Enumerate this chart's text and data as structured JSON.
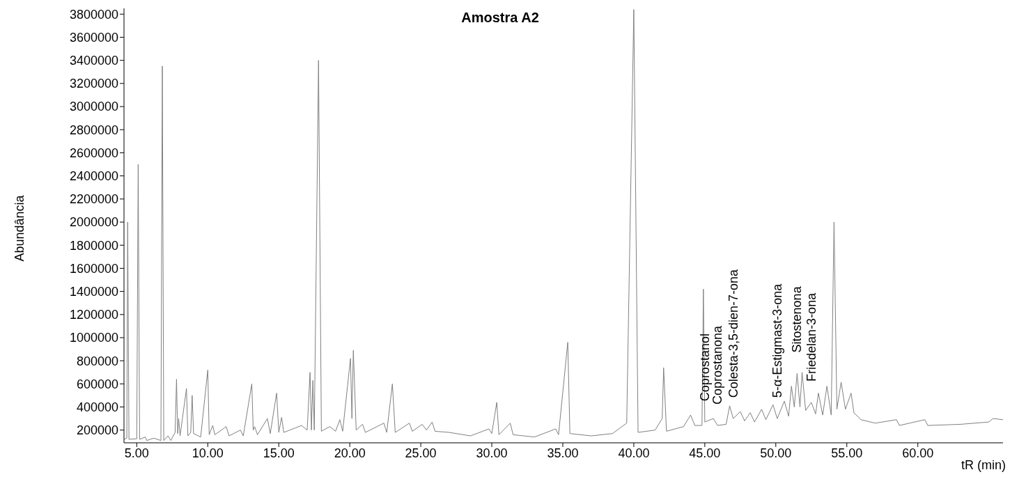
{
  "chart_data": {
    "type": "line",
    "title": "Amostra A2",
    "xlabel": "tR (min)",
    "ylabel": "Abundância",
    "xlim": [
      4.1,
      66
    ],
    "ylim": [
      90000,
      3850000
    ],
    "xticks": [
      {
        "value": 5,
        "label": "5.00"
      },
      {
        "value": 10,
        "label": "10.00"
      },
      {
        "value": 15,
        "label": "15.00"
      },
      {
        "value": 20,
        "label": "20.00"
      },
      {
        "value": 25,
        "label": "25.00"
      },
      {
        "value": 30,
        "label": "30.00"
      },
      {
        "value": 35,
        "label": "35.00"
      },
      {
        "value": 40,
        "label": "40.00"
      },
      {
        "value": 45,
        "label": "45.00"
      },
      {
        "value": 50,
        "label": "50.00"
      },
      {
        "value": 55,
        "label": "55.00"
      },
      {
        "value": 60,
        "label": "60.00"
      }
    ],
    "yticks": [
      200000,
      400000,
      600000,
      800000,
      1000000,
      1200000,
      1400000,
      1600000,
      1800000,
      2000000,
      2200000,
      2400000,
      2600000,
      2800000,
      3000000,
      3200000,
      3400000,
      3600000,
      3800000
    ],
    "grid": false,
    "legend": false,
    "x": [
      4.1,
      4.3,
      4.36,
      4.45,
      5.0,
      5.1,
      5.2,
      5.6,
      5.7,
      6.2,
      6.7,
      6.8,
      6.9,
      7.2,
      7.4,
      7.7,
      7.8,
      7.88,
      7.95,
      8.05,
      8.5,
      8.6,
      8.8,
      8.9,
      9.0,
      9.5,
      10.0,
      10.1,
      10.35,
      10.5,
      11.3,
      11.5,
      12.3,
      12.5,
      13.1,
      13.2,
      13.3,
      13.5,
      14.2,
      14.4,
      14.85,
      15.0,
      15.2,
      15.35,
      16.2,
      16.6,
      17.0,
      17.2,
      17.3,
      17.4,
      17.5,
      17.8,
      18.0,
      18.6,
      19.0,
      19.3,
      19.5,
      20.05,
      20.15,
      20.25,
      20.45,
      20.9,
      21.1,
      22.4,
      22.6,
      23.0,
      23.2,
      24.2,
      24.4,
      25.1,
      25.4,
      25.8,
      26.0,
      27.0,
      28.5,
      29.8,
      30.0,
      30.35,
      30.5,
      31.3,
      31.5,
      33.0,
      34.5,
      34.7,
      35.35,
      35.5,
      37.0,
      38.5,
      39.5,
      40.0,
      40.3,
      41.5,
      42.0,
      42.1,
      42.3,
      43.5,
      44.0,
      44.3,
      44.8,
      44.9,
      45.0,
      45.6,
      45.9,
      46.5,
      46.75,
      47.0,
      47.5,
      47.8,
      48.2,
      48.5,
      49.0,
      49.3,
      49.8,
      50.1,
      50.6,
      50.9,
      51.1,
      51.3,
      51.5,
      51.7,
      51.85,
      52.1,
      52.5,
      52.8,
      53.0,
      53.3,
      53.6,
      53.9,
      54.1,
      54.3,
      54.6,
      54.9,
      55.3,
      55.5,
      56.0,
      57.0,
      58.5,
      58.7,
      60.5,
      60.7,
      63.0,
      65.0,
      65.3,
      66.0
    ],
    "series": [
      {
        "color": "#808080",
        "values": [
          120000,
          130000,
          2000000,
          120000,
          125000,
          2500000,
          120000,
          140000,
          110000,
          130000,
          110000,
          3350000,
          110000,
          150000,
          110000,
          180000,
          640000,
          170000,
          300000,
          150000,
          560000,
          150000,
          180000,
          500000,
          170000,
          140000,
          720000,
          160000,
          240000,
          160000,
          230000,
          150000,
          200000,
          150000,
          600000,
          200000,
          230000,
          160000,
          300000,
          170000,
          520000,
          180000,
          310000,
          180000,
          220000,
          240000,
          200000,
          700000,
          200000,
          630000,
          200000,
          3400000,
          190000,
          230000,
          190000,
          290000,
          190000,
          820000,
          300000,
          890000,
          200000,
          250000,
          180000,
          260000,
          180000,
          600000,
          180000,
          260000,
          190000,
          250000,
          200000,
          270000,
          190000,
          180000,
          150000,
          210000,
          170000,
          440000,
          160000,
          260000,
          160000,
          140000,
          210000,
          160000,
          960000,
          170000,
          150000,
          170000,
          260000,
          3840000,
          180000,
          200000,
          300000,
          740000,
          190000,
          230000,
          330000,
          240000,
          240000,
          1420000,
          270000,
          300000,
          240000,
          250000,
          410000,
          300000,
          360000,
          280000,
          350000,
          270000,
          380000,
          290000,
          420000,
          300000,
          450000,
          320000,
          580000,
          400000,
          690000,
          400000,
          700000,
          370000,
          440000,
          340000,
          520000,
          330000,
          580000,
          330000,
          2000000,
          380000,
          615000,
          380000,
          520000,
          350000,
          290000,
          260000,
          290000,
          240000,
          290000,
          240000,
          250000,
          270000,
          300000,
          290000
        ]
      }
    ],
    "annotations": [
      {
        "text": "Coprostanol",
        "x": 45.0,
        "y": 270000
      },
      {
        "text": "Coprostanona",
        "x": 45.9,
        "y": 240000
      },
      {
        "text": "Colesta-3,5-dien-7-ona",
        "x": 47.0,
        "y": 300000
      },
      {
        "text": "5-α-Estigmast-3-ona",
        "x": 50.1,
        "y": 300000
      },
      {
        "text": "Sitostenona",
        "x": 51.5,
        "y": 690000
      },
      {
        "text": "Friedelan-3-ona",
        "x": 52.5,
        "y": 440000
      }
    ]
  }
}
